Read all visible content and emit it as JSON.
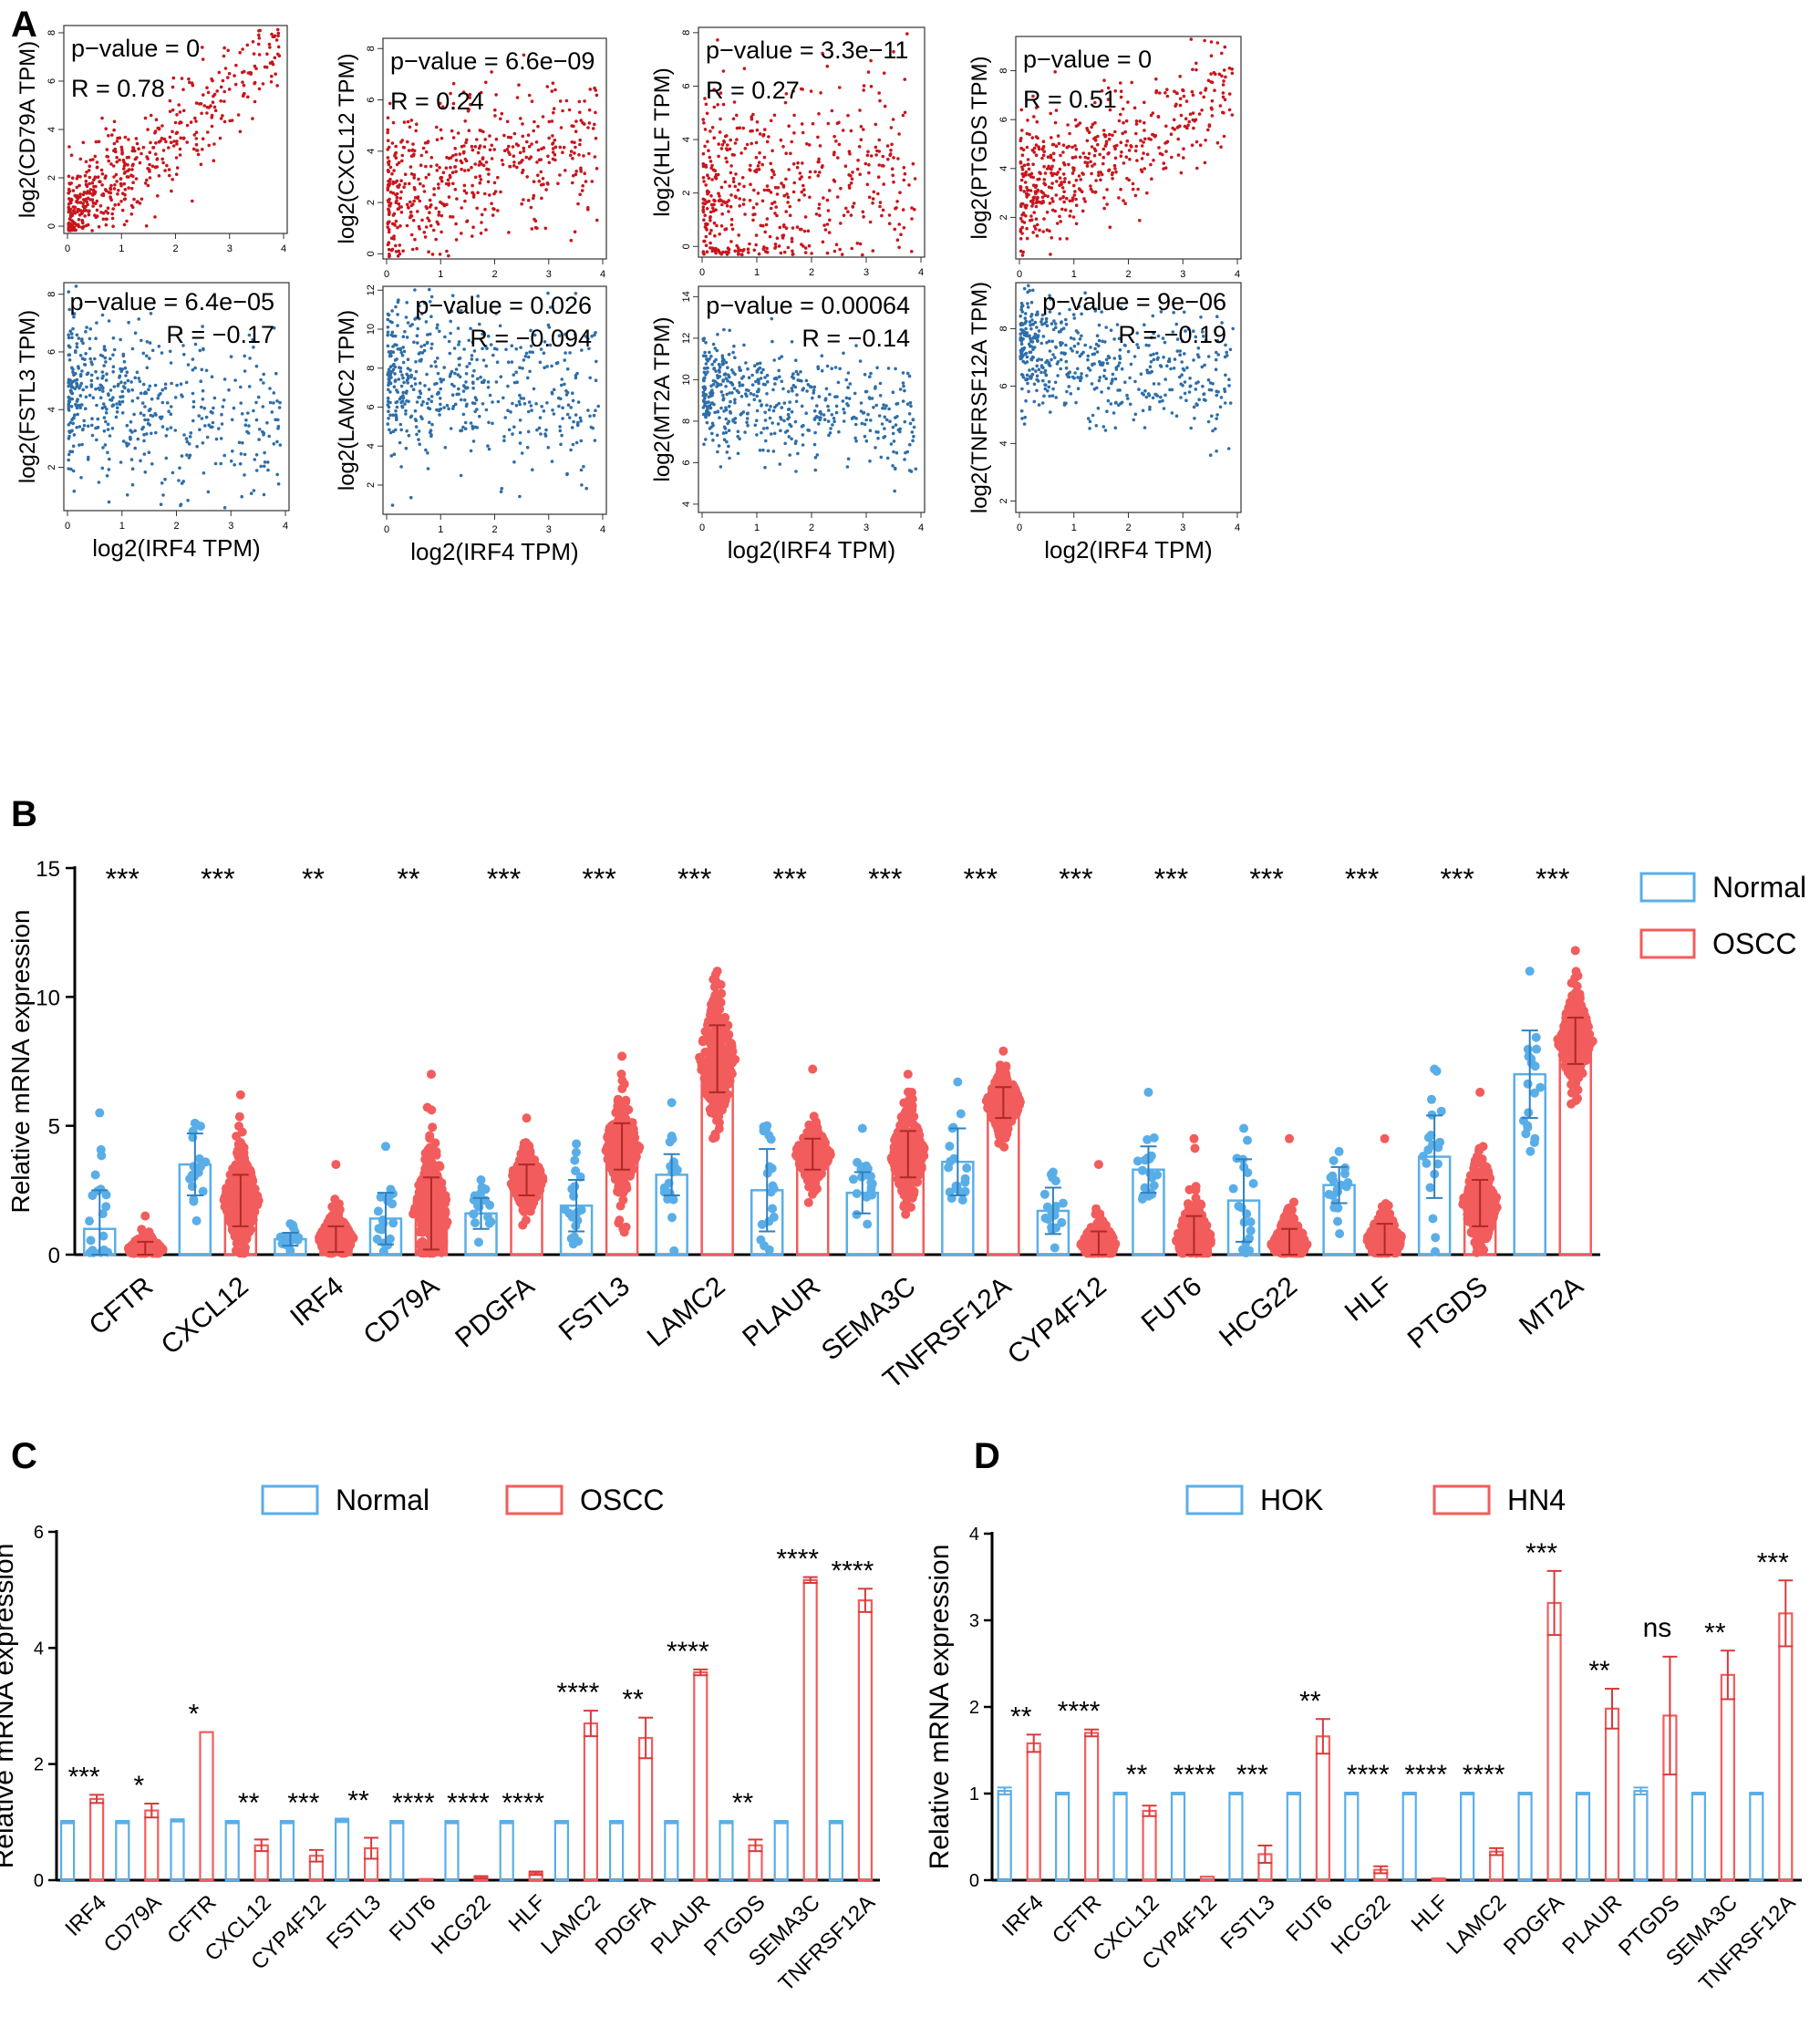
{
  "colors": {
    "normal": "#5aaee8",
    "oscc": "#f25c5c",
    "positive_dot": "#c8161c",
    "negative_dot": "#2e6ea8",
    "axis": "#000000"
  },
  "panel_labels": [
    "A",
    "B",
    "C",
    "D"
  ],
  "chart_data": [
    {
      "panel": "A",
      "type": "scatter",
      "xlabel": "log2(IRF4 TPM)",
      "xlim": [
        0,
        4
      ],
      "xticks": [
        0,
        1,
        2,
        3,
        4
      ],
      "plots": [
        {
          "gene": "CD79A",
          "ylabel": "log2(CD79A TPM)",
          "p_text": "p−value = 0",
          "r_text": "R = 0.78",
          "ylim": [
            -0.3,
            8.3
          ],
          "yticks": [
            0,
            2,
            4,
            6,
            8
          ],
          "slope": 1.7,
          "intercept": 0.4,
          "noise": 1.0,
          "sign": "pos",
          "n": 520
        },
        {
          "gene": "CXCL12",
          "ylabel": "log2(CXCL12 TPM)",
          "p_text": "p−value = 6.6e−09",
          "r_text": "R = 0.24",
          "ylim": [
            -0.2,
            8.4
          ],
          "yticks": [
            0,
            2,
            4,
            6,
            8
          ],
          "slope": 0.55,
          "intercept": 2.4,
          "noise": 1.45,
          "sign": "pos",
          "n": 520
        },
        {
          "gene": "HLF",
          "ylabel": "log2(HLF TPM)",
          "p_text": "p−value = 3.3e−11",
          "r_text": "R = 0.27",
          "ylim": [
            -0.4,
            8.2
          ],
          "yticks": [
            0,
            2,
            4,
            6,
            8
          ],
          "slope": 0.35,
          "intercept": 1.6,
          "noise": 1.9,
          "sign": "pos",
          "n": 520
        },
        {
          "gene": "PTGDS",
          "ylabel": "log2(PTGDS TPM)",
          "p_text": "p−value = 0",
          "r_text": "R = 0.51",
          "ylim": [
            0.3,
            9.4
          ],
          "yticks": [
            2,
            4,
            6,
            8
          ],
          "slope": 1.0,
          "intercept": 3.0,
          "noise": 1.3,
          "sign": "pos",
          "n": 520
        },
        {
          "gene": "FSTL3",
          "ylabel": "log2(FSTL3 TPM)",
          "p_text": "p−value = 6.4e−05",
          "r_text": "R = −0.17",
          "ylim": [
            0.5,
            8.4
          ],
          "yticks": [
            2,
            4,
            6,
            8
          ],
          "slope": -0.35,
          "intercept": 4.8,
          "noise": 1.4,
          "sign": "neg",
          "n": 520
        },
        {
          "gene": "LAMC2",
          "ylabel": "log2(LAMC2 TPM)",
          "p_text": "p−value = 0.026",
          "r_text": "R = −0.094",
          "ylim": [
            0.5,
            12.2
          ],
          "yticks": [
            2,
            4,
            6,
            8,
            10,
            12
          ],
          "slope": -0.3,
          "intercept": 7.6,
          "noise": 2.0,
          "sign": "neg",
          "n": 520
        },
        {
          "gene": "MT2A",
          "ylabel": "log2(MT2A TPM)",
          "p_text": "p−value = 0.00064",
          "r_text": "R = −0.14",
          "ylim": [
            3.6,
            14.5
          ],
          "yticks": [
            4,
            6,
            8,
            10,
            12,
            14
          ],
          "slope": -0.35,
          "intercept": 9.4,
          "noise": 1.3,
          "sign": "neg",
          "n": 520
        },
        {
          "gene": "TNFRSF12A",
          "ylabel": "log2(TNFRSF12A TPM)",
          "p_text": "p−value = 9e−06",
          "r_text": "R = −0.19",
          "ylim": [
            1.6,
            9.6
          ],
          "yticks": [
            2,
            4,
            6,
            8
          ],
          "slope": -0.3,
          "intercept": 7.3,
          "noise": 1.05,
          "sign": "neg",
          "n": 520
        }
      ]
    },
    {
      "panel": "B",
      "type": "bar",
      "ylabel": "Relative mRNA expression",
      "ylim": [
        0,
        15
      ],
      "yticks": [
        0,
        5,
        10,
        15
      ],
      "legend": [
        "Normal",
        "OSCC"
      ],
      "legend_position": "top-right",
      "categories": [
        "CFTR",
        "CXCL12",
        "IRF4",
        "CD79A",
        "PDGFA",
        "FSTL3",
        "LAMC2",
        "PLAUR",
        "SEMA3C",
        "TNFRSF12A",
        "CYP4F12",
        "FUT6",
        "HCG22",
        "HLF",
        "PTGDS",
        "MT2A"
      ],
      "significance": [
        "***",
        "***",
        "**",
        "**",
        "***",
        "***",
        "***",
        "***",
        "***",
        "***",
        "***",
        "***",
        "***",
        "***",
        "***",
        "***"
      ],
      "series": [
        {
          "name": "Normal",
          "values": [
            1.0,
            3.5,
            0.6,
            1.4,
            1.6,
            1.9,
            3.1,
            2.5,
            2.4,
            3.6,
            1.7,
            3.3,
            2.1,
            2.7,
            3.8,
            7.0
          ],
          "sd": [
            1.5,
            1.2,
            0.25,
            1.0,
            0.6,
            1.0,
            0.8,
            1.6,
            0.8,
            1.3,
            0.9,
            0.9,
            1.6,
            0.7,
            1.6,
            1.7
          ],
          "max": [
            5.5,
            5.1,
            1.2,
            4.2,
            2.9,
            4.3,
            5.9,
            5.0,
            4.9,
            6.7,
            3.2,
            6.3,
            4.9,
            4.0,
            7.2,
            11.0
          ]
        },
        {
          "name": "OSCC",
          "values": [
            0.2,
            2.1,
            0.6,
            1.6,
            2.9,
            4.2,
            7.6,
            3.9,
            3.9,
            5.9,
            0.4,
            0.6,
            0.4,
            0.6,
            2.0,
            8.3
          ],
          "sd": [
            0.3,
            1.0,
            0.5,
            1.4,
            0.6,
            0.9,
            1.3,
            0.6,
            0.9,
            0.6,
            0.5,
            0.9,
            0.6,
            0.6,
            0.9,
            0.9
          ],
          "max": [
            1.5,
            6.2,
            3.5,
            7.0,
            5.3,
            7.7,
            11.0,
            7.2,
            7.0,
            7.9,
            3.5,
            4.5,
            4.5,
            4.5,
            6.3,
            11.8
          ]
        }
      ]
    },
    {
      "panel": "C",
      "type": "bar",
      "ylabel": "Relative mRNA expression",
      "ylim": [
        0,
        6
      ],
      "yticks": [
        0,
        2,
        4,
        6
      ],
      "legend": [
        "Normal",
        "OSCC"
      ],
      "legend_position": "top",
      "categories": [
        "IRF4",
        "CD79A",
        "CFTR",
        "CXCL12",
        "CYP4F12",
        "FSTL3",
        "FUT6",
        "HCG22",
        "HLF",
        "LAMC2",
        "PDGFA",
        "PLAUR",
        "PTGDS",
        "SEMA3C",
        "TNFRSF12A"
      ],
      "significance": [
        "***",
        "*",
        "*",
        "**",
        "***",
        "**",
        "****",
        "****",
        "****",
        "****",
        "**",
        "****",
        "**",
        "****",
        "****"
      ],
      "series": [
        {
          "name": "Normal",
          "values": [
            1.0,
            1.0,
            1.03,
            1.0,
            1.0,
            1.03,
            1.0,
            1.0,
            1.0,
            1.0,
            1.0,
            1.0,
            1.0,
            1.0,
            1.0
          ],
          "sd": [
            0.02,
            0.02,
            0.02,
            0.02,
            0.02,
            0.03,
            0.02,
            0.02,
            0.02,
            0.02,
            0.02,
            0.02,
            0.02,
            0.02,
            0.02
          ]
        },
        {
          "name": "OSCC",
          "values": [
            1.4,
            1.2,
            2.55,
            0.6,
            0.42,
            0.55,
            0.02,
            0.05,
            0.12,
            2.7,
            2.45,
            3.58,
            0.6,
            5.17,
            4.82
          ],
          "sd": [
            0.07,
            0.12,
            0.0,
            0.1,
            0.1,
            0.18,
            0.0,
            0.02,
            0.03,
            0.22,
            0.35,
            0.05,
            0.1,
            0.05,
            0.2
          ]
        }
      ]
    },
    {
      "panel": "D",
      "type": "bar",
      "ylabel": "Relative mRNA expression",
      "ylim": [
        0,
        4
      ],
      "yticks": [
        0,
        1,
        2,
        3,
        4
      ],
      "legend": [
        "HOK",
        "HN4"
      ],
      "legend_position": "top",
      "categories": [
        "IRF4",
        "CFTR",
        "CXCL12",
        "CYP4F12",
        "FSTL3",
        "FUT6",
        "HCG22",
        "HLF",
        "LAMC2",
        "PDGFA",
        "PLAUR",
        "PTGDS",
        "SEMA3C",
        "TNFRSF12A"
      ],
      "significance": [
        "**",
        "****",
        "**",
        "****",
        "***",
        "**",
        "****",
        "****",
        "****",
        "***",
        "**",
        "ns",
        "**",
        "***"
      ],
      "series": [
        {
          "name": "HOK",
          "values": [
            1.03,
            1.0,
            1.0,
            1.0,
            1.0,
            1.0,
            1.0,
            1.0,
            1.0,
            1.0,
            1.0,
            1.03,
            1.0,
            1.0
          ],
          "sd": [
            0.04,
            0.01,
            0.01,
            0.01,
            0.01,
            0.01,
            0.01,
            0.01,
            0.01,
            0.01,
            0.01,
            0.04,
            0.01,
            0.01
          ]
        },
        {
          "name": "HN4",
          "values": [
            1.58,
            1.7,
            0.8,
            0.04,
            0.3,
            1.66,
            0.12,
            0.02,
            0.33,
            3.2,
            1.98,
            1.9,
            2.37,
            3.08
          ],
          "sd": [
            0.1,
            0.04,
            0.06,
            0.0,
            0.1,
            0.2,
            0.04,
            0.0,
            0.04,
            0.37,
            0.23,
            0.68,
            0.28,
            0.38
          ]
        }
      ]
    }
  ]
}
